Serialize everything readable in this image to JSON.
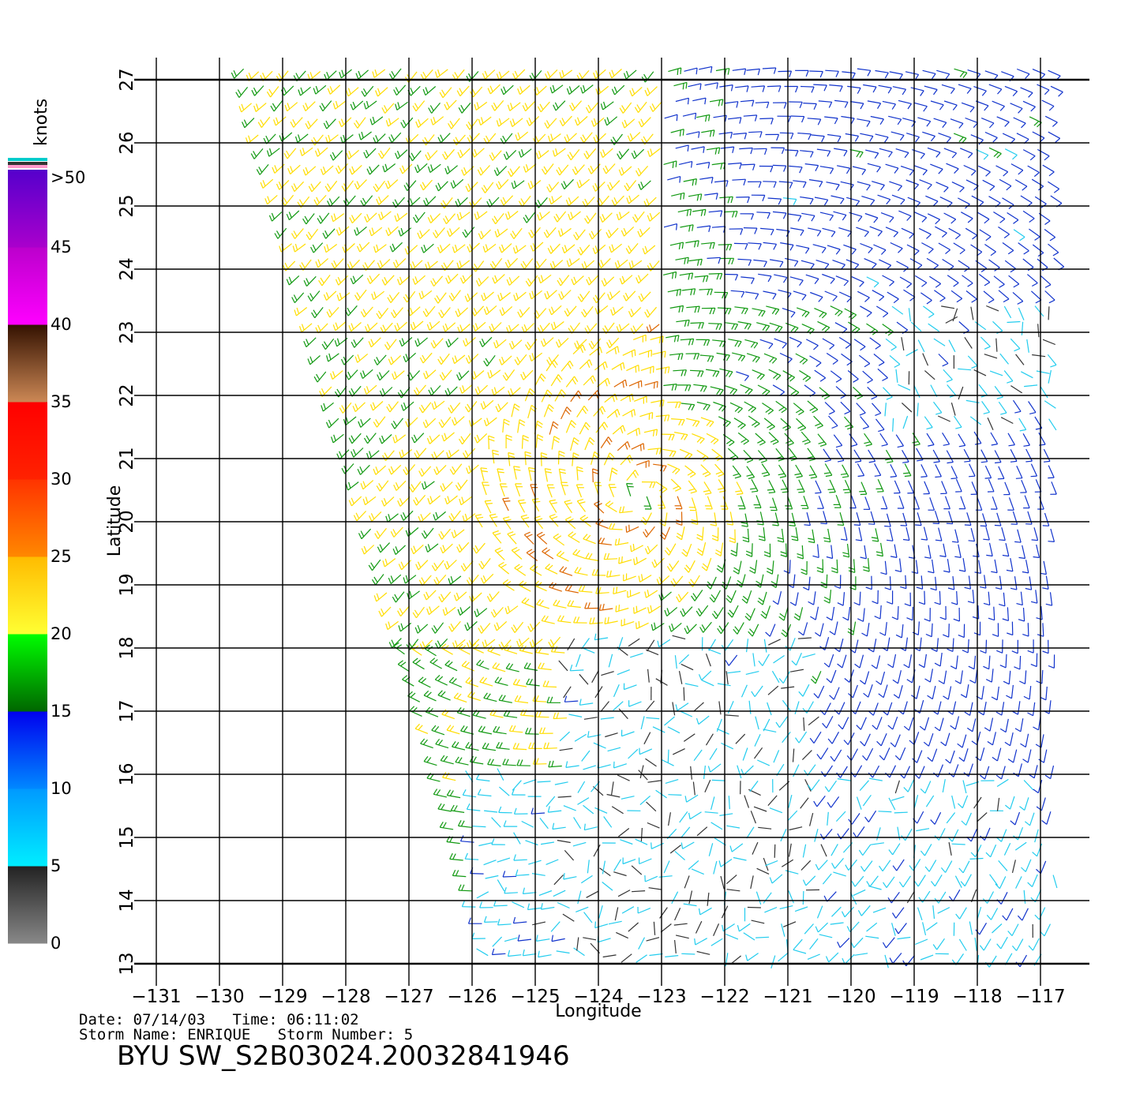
{
  "chart_data": {
    "type": "wind-barb",
    "xlabel": "Longitude",
    "ylabel": "Latitude",
    "xlim": [
      -131,
      -116.6
    ],
    "ylim": [
      13,
      27
    ],
    "x_ticks": [
      -131,
      -130,
      -129,
      -128,
      -127,
      -126,
      -125,
      -124,
      -123,
      -122,
      -121,
      -120,
      -119,
      -118,
      -117
    ],
    "y_ticks": [
      13,
      14,
      15,
      16,
      17,
      18,
      19,
      20,
      21,
      22,
      23,
      24,
      25,
      26,
      27
    ],
    "grid": true,
    "storm_center": {
      "lon": -123.4,
      "lat": 20.4
    },
    "colorbar": {
      "unit": "knots",
      "placement": "left",
      "labels": [
        ">50",
        "45",
        "40",
        "35",
        "30",
        "25",
        "20",
        "15",
        "10",
        "5",
        "0"
      ],
      "bands": [
        {
          "from": 0,
          "to": 5,
          "colors": [
            "#888888",
            "#222222"
          ]
        },
        {
          "from": 5,
          "to": 10,
          "colors": [
            "#00eeff",
            "#0099ff"
          ]
        },
        {
          "from": 10,
          "to": 15,
          "colors": [
            "#0088ff",
            "#0000ee"
          ]
        },
        {
          "from": 15,
          "to": 20,
          "colors": [
            "#006600",
            "#00ff00"
          ]
        },
        {
          "from": 20,
          "to": 25,
          "colors": [
            "#ffff33",
            "#ffbb00"
          ]
        },
        {
          "from": 25,
          "to": 30,
          "colors": [
            "#ff8800",
            "#ff3300"
          ]
        },
        {
          "from": 30,
          "to": 35,
          "colors": [
            "#ff2200",
            "#ff0000"
          ]
        },
        {
          "from": 35,
          "to": 40,
          "colors": [
            "#cc8855",
            "#331100"
          ]
        },
        {
          "from": 40,
          "to": 45,
          "colors": [
            "#ff00ff",
            "#bb00cc"
          ]
        },
        {
          "from": 45,
          "to": 50,
          "colors": [
            "#aa00cc",
            "#5500cc"
          ]
        }
      ]
    },
    "speed_colors": {
      "calm": "#333333",
      "light": "#22ccee",
      "moderate": "#1133cc",
      "fresh": "#119911",
      "strong": "#ffdd00",
      "gale": "#dd6600"
    }
  },
  "metadata_text": {
    "line1": "Date: 07/14/03   Time: 06:11:02",
    "line2": "Storm Name: ENRIQUE   Storm Number: 5",
    "title": "BYU SW_S2B03024.20032841946"
  }
}
